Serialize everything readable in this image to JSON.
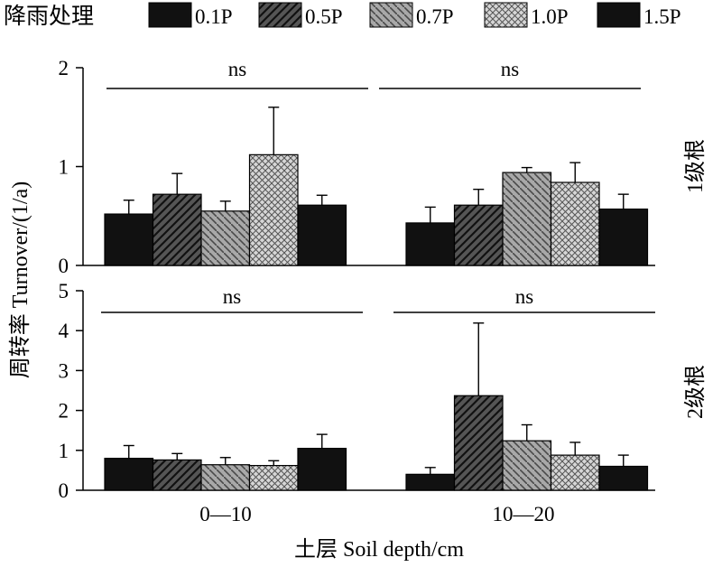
{
  "chart_data": {
    "type": "bar",
    "legend": {
      "title": "降雨处理",
      "placement": "top",
      "entries": [
        "0.1P",
        "0.5P",
        "0.7P",
        "1.0P",
        "1.5P"
      ]
    },
    "series_fills": [
      "solid",
      "dark-hatch",
      "gray-hatch",
      "crosshatch",
      "solid"
    ],
    "colors": {
      "solid": "#111111",
      "dark_hatch": "#404040",
      "gray_hatch": "#8c8c8c",
      "crosshatch": "#c8c8c8"
    },
    "categories": [
      "0—10",
      "10—20"
    ],
    "xlabel": "土层 Soil depth/cm",
    "ylabel": "周转率 Turnover/(1/a)",
    "panels": [
      {
        "label": "1级根",
        "ylim": [
          0,
          2
        ],
        "yticks": [
          "0",
          "1",
          "2"
        ],
        "significance": [
          "ns",
          "ns"
        ],
        "groups": [
          {
            "values": [
              0.52,
              0.72,
              0.55,
              1.12,
              0.61
            ],
            "errors": [
              0.14,
              0.21,
              0.1,
              0.48,
              0.1
            ]
          },
          {
            "values": [
              0.43,
              0.61,
              0.94,
              0.84,
              0.57
            ],
            "errors": [
              0.16,
              0.16,
              0.05,
              0.2,
              0.15
            ]
          }
        ]
      },
      {
        "label": "2级根",
        "ylim": [
          0,
          5
        ],
        "yticks": [
          "0",
          "1",
          "2",
          "3",
          "4",
          "5"
        ],
        "significance": [
          "ns",
          "ns"
        ],
        "groups": [
          {
            "values": [
              0.8,
              0.76,
              0.64,
              0.62,
              1.05
            ],
            "errors": [
              0.32,
              0.16,
              0.18,
              0.12,
              0.35
            ]
          },
          {
            "values": [
              0.4,
              2.37,
              1.24,
              0.88,
              0.6
            ],
            "errors": [
              0.17,
              1.82,
              0.4,
              0.32,
              0.28
            ]
          }
        ]
      }
    ]
  }
}
